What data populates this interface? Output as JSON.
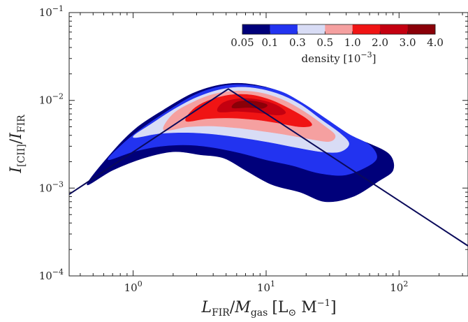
{
  "chart_data": {
    "type": "contour-density",
    "xlabel": {
      "main": "L",
      "sub": "FIR",
      "sep": "/",
      "main2": "M",
      "sub2": "gas",
      "unit": "[L",
      "unit_sun": "⊙",
      "unit_mid": " M",
      "unit_exp": "−1",
      "unit_end": "]"
    },
    "ylabel": {
      "main": "I",
      "sub": "[CII]",
      "sep": "/",
      "main2": "I",
      "sub2": "FIR"
    },
    "x_scale": "log",
    "y_scale": "log",
    "xlim": [
      0.33,
      330
    ],
    "ylim": [
      0.0001,
      0.1
    ],
    "x_major_ticks": [
      {
        "value": 1,
        "base": "10",
        "exp": "0"
      },
      {
        "value": 10,
        "base": "10",
        "exp": "1"
      },
      {
        "value": 100,
        "base": "10",
        "exp": "2"
      }
    ],
    "y_major_ticks": [
      {
        "value": 0.0001,
        "base": "10",
        "exp": "−4"
      },
      {
        "value": 0.001,
        "base": "10",
        "exp": "−3"
      },
      {
        "value": 0.01,
        "base": "10",
        "exp": "−2"
      },
      {
        "value": 0.1,
        "base": "10",
        "exp": "−1"
      }
    ],
    "line": {
      "color": "#0a0a5a",
      "x": [
        0.33,
        5.2,
        330
      ],
      "y": [
        0.00085,
        0.0135,
        0.00022
      ]
    },
    "colorbar": {
      "label_text": "density [10",
      "label_exp": "−3",
      "label_end": "]",
      "tick_labels": [
        "0.05",
        "0.1",
        "0.3",
        "0.5",
        "1.0",
        "2.0",
        "3.0",
        "4.0"
      ],
      "bins": [
        {
          "from": 0.05,
          "to": 0.1,
          "color": "#00007a"
        },
        {
          "from": 0.1,
          "to": 0.3,
          "color": "#2233f0"
        },
        {
          "from": 0.3,
          "to": 0.5,
          "color": "#d8dcf5"
        },
        {
          "from": 0.5,
          "to": 1.0,
          "color": "#f5a0a0"
        },
        {
          "from": 1.0,
          "to": 2.0,
          "color": "#f01414"
        },
        {
          "from": 2.0,
          "to": 3.0,
          "color": "#c40010"
        },
        {
          "from": 3.0,
          "to": 4.0,
          "color": "#8a0008"
        }
      ]
    },
    "density_levels": [
      {
        "level": 0.05,
        "color": "#00007a",
        "points": [
          [
            0.45,
            0.0011
          ],
          [
            0.7,
            0.0016
          ],
          [
            1.2,
            0.0022
          ],
          [
            2.0,
            0.0026
          ],
          [
            3.2,
            0.0024
          ],
          [
            4.8,
            0.0022
          ],
          [
            7.0,
            0.0016
          ],
          [
            11,
            0.0011
          ],
          [
            18,
            0.0009
          ],
          [
            28,
            0.0007
          ],
          [
            45,
            0.0008
          ],
          [
            70,
            0.0012
          ],
          [
            90,
            0.0016
          ],
          [
            85,
            0.0024
          ],
          [
            60,
            0.0032
          ],
          [
            40,
            0.004
          ],
          [
            25,
            0.006
          ],
          [
            18,
            0.009
          ],
          [
            12,
            0.013
          ],
          [
            7,
            0.0155
          ],
          [
            4.5,
            0.015
          ],
          [
            2.8,
            0.012
          ],
          [
            1.7,
            0.0078
          ],
          [
            1.05,
            0.0048
          ],
          [
            0.7,
            0.0026
          ]
        ]
      },
      {
        "level": 0.1,
        "color": "#2233f0",
        "points": [
          [
            0.65,
            0.0021
          ],
          [
            1.0,
            0.0026
          ],
          [
            1.6,
            0.003
          ],
          [
            2.6,
            0.0031
          ],
          [
            4.0,
            0.0029
          ],
          [
            6.5,
            0.0025
          ],
          [
            10,
            0.0021
          ],
          [
            16,
            0.0018
          ],
          [
            24,
            0.0015
          ],
          [
            38,
            0.0014
          ],
          [
            55,
            0.0017
          ],
          [
            68,
            0.0022
          ],
          [
            60,
            0.0031
          ],
          [
            42,
            0.0041
          ],
          [
            28,
            0.0062
          ],
          [
            19,
            0.0092
          ],
          [
            12.5,
            0.0128
          ],
          [
            7.2,
            0.015
          ],
          [
            4.6,
            0.0145
          ],
          [
            2.9,
            0.0115
          ],
          [
            1.8,
            0.0075
          ],
          [
            1.1,
            0.0045
          ],
          [
            0.8,
            0.003
          ]
        ]
      },
      {
        "level": 0.3,
        "color": "#d8dcf5",
        "points": [
          [
            1.0,
            0.0038
          ],
          [
            1.6,
            0.0042
          ],
          [
            2.6,
            0.0043
          ],
          [
            4.2,
            0.0041
          ],
          [
            7,
            0.0037
          ],
          [
            11,
            0.0033
          ],
          [
            17,
            0.0029
          ],
          [
            26,
            0.0026
          ],
          [
            36,
            0.0026
          ],
          [
            42,
            0.0032
          ],
          [
            36,
            0.0042
          ],
          [
            26,
            0.006
          ],
          [
            18,
            0.009
          ],
          [
            12,
            0.012
          ],
          [
            7.5,
            0.014
          ],
          [
            4.8,
            0.0135
          ],
          [
            3.0,
            0.0108
          ],
          [
            2.0,
            0.0078
          ],
          [
            1.4,
            0.0055
          ]
        ]
      },
      {
        "level": 0.5,
        "color": "#f5a0a0",
        "points": [
          [
            1.7,
            0.0046
          ],
          [
            2.6,
            0.005
          ],
          [
            4.0,
            0.0051
          ],
          [
            6.5,
            0.0048
          ],
          [
            10,
            0.0044
          ],
          [
            15,
            0.004
          ],
          [
            22,
            0.0036
          ],
          [
            30,
            0.0034
          ],
          [
            33,
            0.004
          ],
          [
            27,
            0.0052
          ],
          [
            20,
            0.0072
          ],
          [
            14,
            0.0098
          ],
          [
            9.5,
            0.012
          ],
          [
            6.2,
            0.0128
          ],
          [
            4.1,
            0.0118
          ],
          [
            2.8,
            0.0095
          ],
          [
            2.0,
            0.007
          ]
        ]
      },
      {
        "level": 1.0,
        "color": "#f01414",
        "points": [
          [
            2.5,
            0.0058
          ],
          [
            3.6,
            0.0062
          ],
          [
            5.5,
            0.0063
          ],
          [
            8.5,
            0.006
          ],
          [
            12.5,
            0.0055
          ],
          [
            18,
            0.005
          ],
          [
            22,
            0.0052
          ],
          [
            20,
            0.0062
          ],
          [
            15,
            0.008
          ],
          [
            11,
            0.01
          ],
          [
            7.8,
            0.0115
          ],
          [
            5.3,
            0.0115
          ],
          [
            3.6,
            0.0098
          ],
          [
            2.8,
            0.0078
          ]
        ]
      },
      {
        "level": 2.0,
        "color": "#c40010",
        "points": [
          [
            4.4,
            0.0074
          ],
          [
            6.2,
            0.0075
          ],
          [
            8.8,
            0.0072
          ],
          [
            12,
            0.0068
          ],
          [
            14,
            0.0072
          ],
          [
            12.5,
            0.0085
          ],
          [
            9.8,
            0.0098
          ],
          [
            7.2,
            0.0105
          ],
          [
            5.3,
            0.01
          ],
          [
            4.5,
            0.0088
          ]
        ]
      },
      {
        "level": 3.0,
        "color": "#8a0008",
        "points": [
          [
            5.6,
            0.0082
          ],
          [
            7.4,
            0.0083
          ],
          [
            9.3,
            0.0081
          ],
          [
            10.2,
            0.0088
          ],
          [
            9.0,
            0.0095
          ],
          [
            7.2,
            0.0099
          ],
          [
            5.9,
            0.0094
          ]
        ]
      }
    ]
  }
}
